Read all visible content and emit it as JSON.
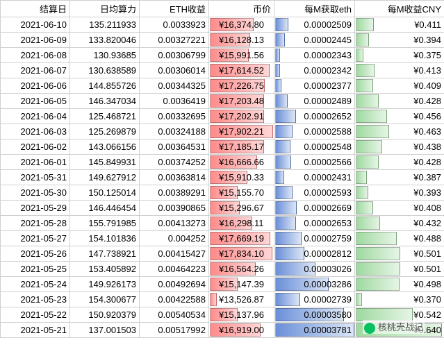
{
  "watermark_text": "核桃壳战记",
  "wechat_source": "核桃壳战记",
  "table": {
    "type": "table",
    "columns": [
      "结算日",
      "日均算力",
      "ETH收益",
      "币价",
      "每M获取eth",
      "每M收益CNY"
    ],
    "col_align": [
      "right",
      "right",
      "right",
      "center",
      "right",
      "right"
    ],
    "currency_prefix": "¥",
    "bar_styles": {
      "price": {
        "gradient": [
          "#ff8a8a",
          "#ffd6d6"
        ],
        "border": "#e06666",
        "align": "left"
      },
      "per_eth": {
        "gradient": [
          "#6a8fd8",
          "#dce6f6"
        ],
        "border": "#5b7bbf",
        "align": "left"
      },
      "cny": {
        "gradient": [
          "#9fd9a0",
          "#e6f5e6"
        ],
        "border": "#6fbf73",
        "align": "left"
      }
    },
    "bar_ranges": {
      "price": {
        "min": 13000,
        "max": 18000
      },
      "per_eth": {
        "min": 2.25e-05,
        "max": 3.8e-05
      },
      "cny": {
        "min": 0.35,
        "max": 0.65
      }
    },
    "rows": [
      {
        "date": "2021-06-10",
        "hash": "135.211933",
        "eth": "0.0033923",
        "price": "16,374.80",
        "per": "0.00002509",
        "cny": "0.411"
      },
      {
        "date": "2021-06-09",
        "hash": "133.820046",
        "eth": "0.00327221",
        "price": "16,128.13",
        "per": "0.00002445",
        "cny": "0.394"
      },
      {
        "date": "2021-06-08",
        "hash": "130.93685",
        "eth": "0.00306799",
        "price": "15,991.56",
        "per": "0.00002343",
        "cny": "0.375"
      },
      {
        "date": "2021-06-07",
        "hash": "130.638589",
        "eth": "0.00306014",
        "price": "17,614.52",
        "per": "0.00002342",
        "cny": "0.413"
      },
      {
        "date": "2021-06-06",
        "hash": "144.855726",
        "eth": "0.00344325",
        "price": "17,226.75",
        "per": "0.00002377",
        "cny": "0.409"
      },
      {
        "date": "2021-06-05",
        "hash": "146.347034",
        "eth": "0.0036419",
        "price": "17,203.48",
        "per": "0.00002489",
        "cny": "0.428"
      },
      {
        "date": "2021-06-04",
        "hash": "125.468721",
        "eth": "0.00332695",
        "price": "17,202.91",
        "per": "0.00002652",
        "cny": "0.456"
      },
      {
        "date": "2021-06-03",
        "hash": "125.269879",
        "eth": "0.00324188",
        "price": "17,902.21",
        "per": "0.00002588",
        "cny": "0.463"
      },
      {
        "date": "2021-06-02",
        "hash": "143.066156",
        "eth": "0.00364531",
        "price": "17,185.17",
        "per": "0.00002548",
        "cny": "0.438"
      },
      {
        "date": "2021-06-01",
        "hash": "145.849931",
        "eth": "0.00374252",
        "price": "16,666.66",
        "per": "0.00002566",
        "cny": "0.428"
      },
      {
        "date": "2021-05-31",
        "hash": "149.627912",
        "eth": "0.00363814",
        "price": "15,910.33",
        "per": "0.00002431",
        "cny": "0.387"
      },
      {
        "date": "2021-05-30",
        "hash": "150.125014",
        "eth": "0.00389291",
        "price": "15,155.70",
        "per": "0.00002593",
        "cny": "0.393"
      },
      {
        "date": "2021-05-29",
        "hash": "146.446454",
        "eth": "0.00390865",
        "price": "15,296.67",
        "per": "0.00002669",
        "cny": "0.408"
      },
      {
        "date": "2021-05-28",
        "hash": "155.791985",
        "eth": "0.00413273",
        "price": "16,298.11",
        "per": "0.00002653",
        "cny": "0.432"
      },
      {
        "date": "2021-05-27",
        "hash": "154.101836",
        "eth": "0.004252",
        "price": "17,669.19",
        "per": "0.00002759",
        "cny": "0.488"
      },
      {
        "date": "2021-05-26",
        "hash": "147.738921",
        "eth": "0.00415427",
        "price": "17,834.10",
        "per": "0.00002812",
        "cny": "0.501"
      },
      {
        "date": "2021-05-25",
        "hash": "153.405892",
        "eth": "0.00464223",
        "price": "16,564.26",
        "per": "0.00003026",
        "cny": "0.501"
      },
      {
        "date": "2021-05-24",
        "hash": "149.926173",
        "eth": "0.00492694",
        "price": "15,147.39",
        "per": "0.00003286",
        "cny": "0.498"
      },
      {
        "date": "2021-05-23",
        "hash": "154.300677",
        "eth": "0.00422588",
        "price": "13,526.87",
        "per": "0.00002739",
        "cny": "0.370"
      },
      {
        "date": "2021-05-22",
        "hash": "150.920379",
        "eth": "0.00540534",
        "price": "15,137.96",
        "per": "0.00003580",
        "cny": "0.542"
      },
      {
        "date": "2021-05-21",
        "hash": "137.001503",
        "eth": "0.00517992",
        "price": "16,919.00",
        "per": "0.00003781",
        "cny": "0.640"
      }
    ]
  }
}
